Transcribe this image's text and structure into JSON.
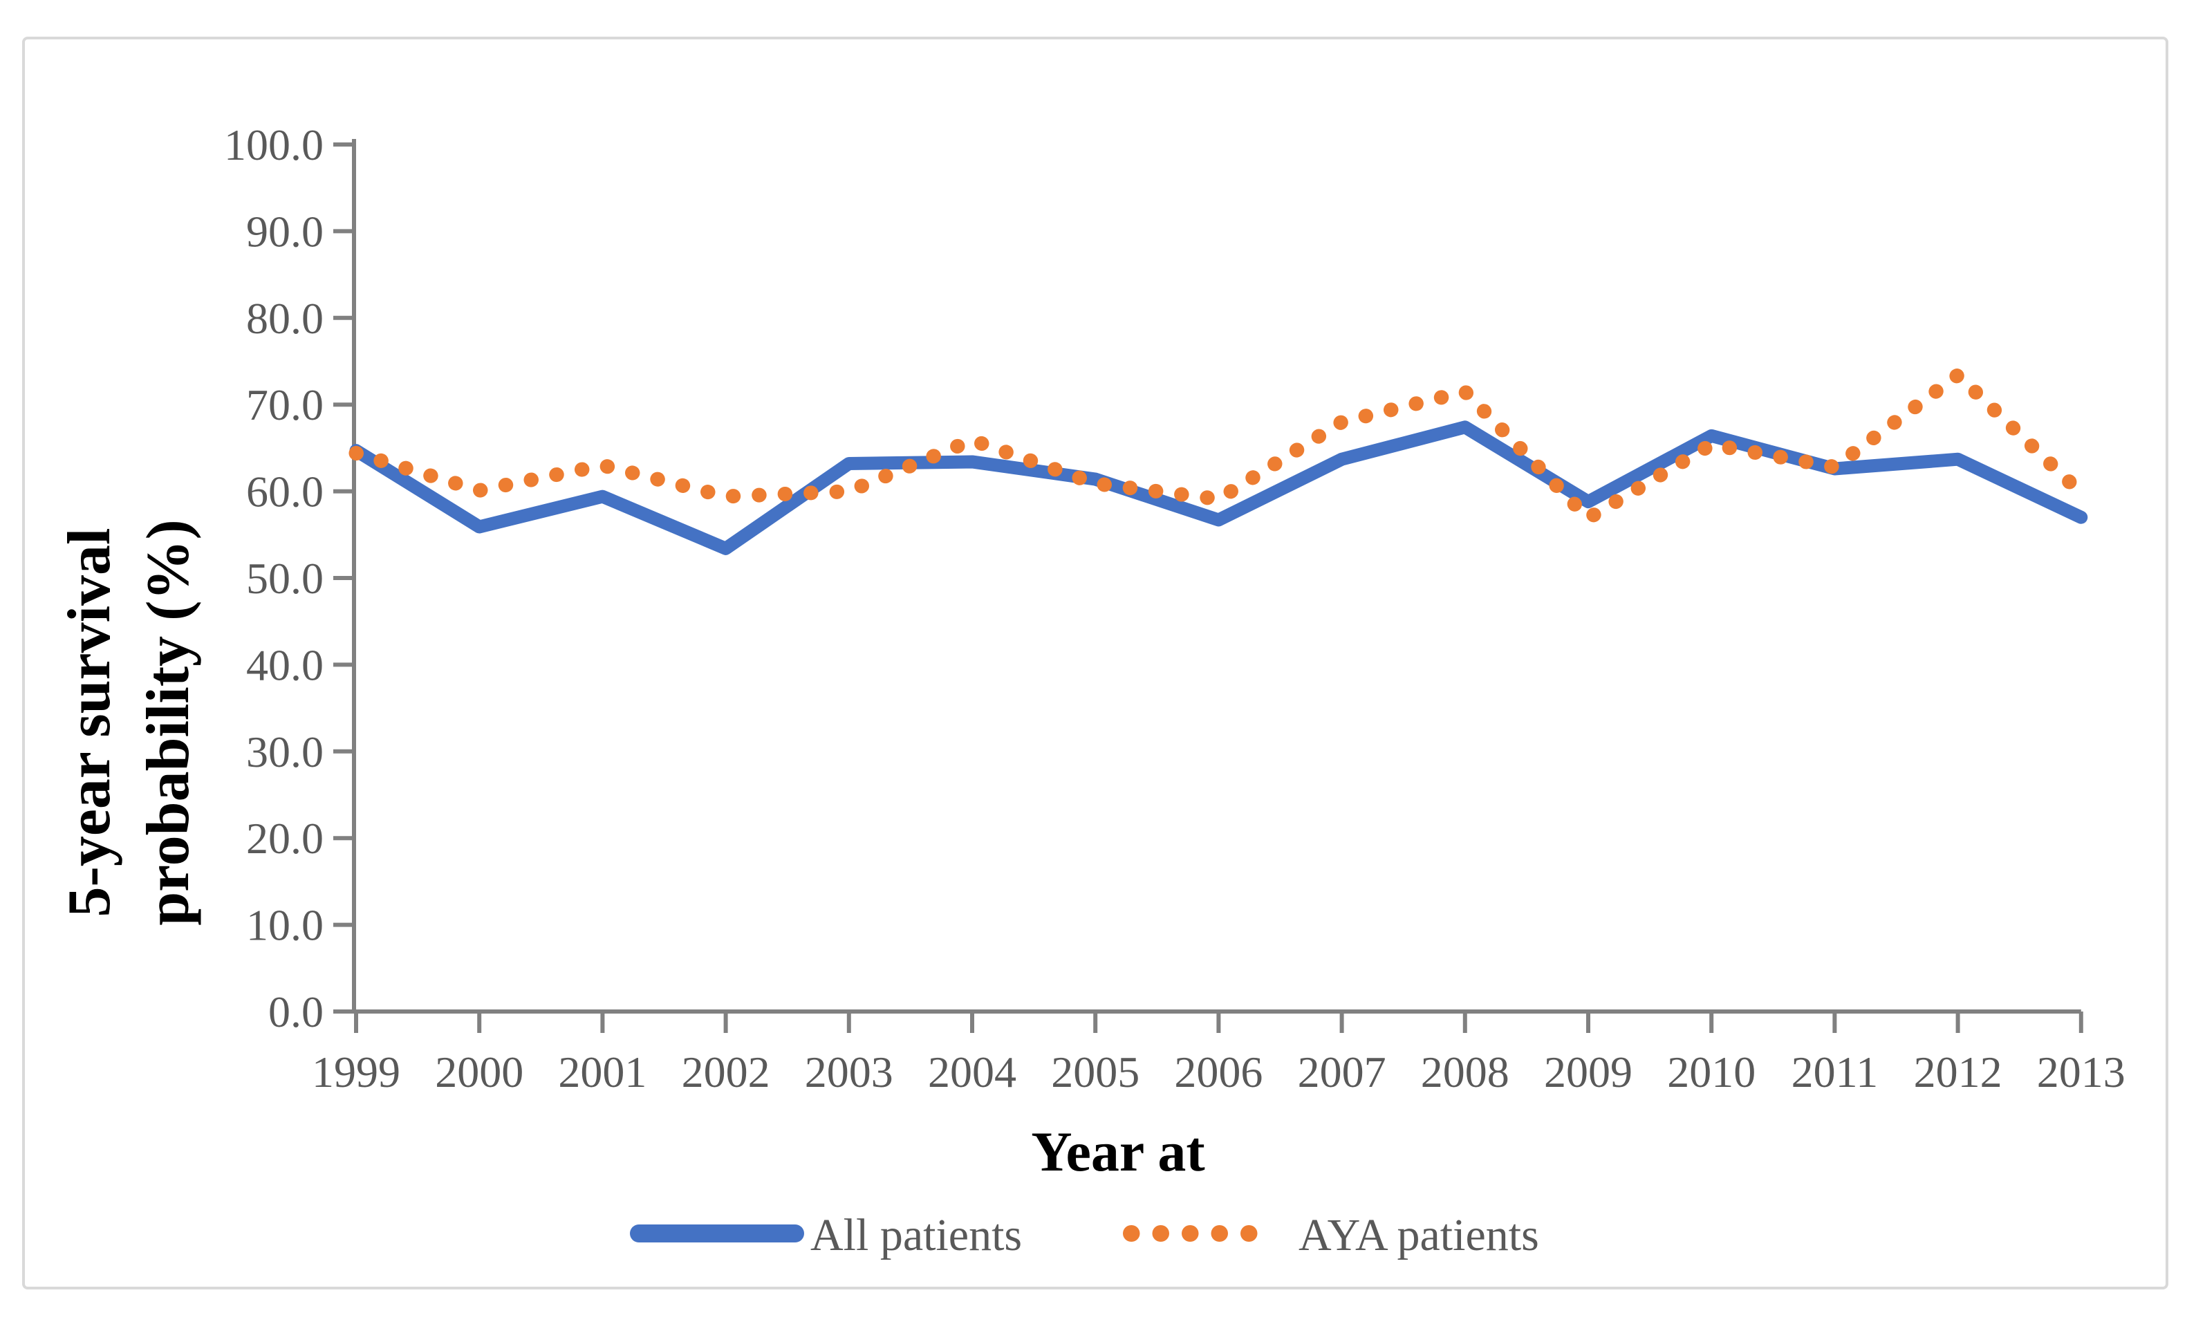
{
  "figure": {
    "border_color": "#D9D9D9",
    "background_color": "#FFFFFF"
  },
  "chart_data": {
    "type": "line",
    "title": "",
    "xlabel": "Year at",
    "ylabel": "5-year survival probability (%)",
    "ylabel_lines": [
      "5-year survival",
      "probability (%)"
    ],
    "categories": [
      "1999",
      "2000",
      "2001",
      "2002",
      "2003",
      "2004",
      "2005",
      "2006",
      "2007",
      "2008",
      "2009",
      "2010",
      "2011",
      "2012",
      "2013"
    ],
    "series": [
      {
        "name": "All patients",
        "style": "solid",
        "color": "#4472C4",
        "values": [
          64.7,
          55.9,
          59.4,
          53.4,
          63.2,
          63.4,
          61.4,
          56.7,
          63.7,
          67.4,
          58.8,
          66.4,
          62.6,
          63.7,
          57.0
        ]
      },
      {
        "name": "AYA patients",
        "style": "dotted",
        "color": "#ED7D31",
        "values": [
          64.4,
          60.1,
          63.0,
          59.4,
          60.0,
          65.9,
          60.9,
          59.1,
          68.0,
          71.5,
          56.9,
          65.4,
          62.8,
          73.4,
          59.8
        ]
      }
    ],
    "ylim": [
      0,
      100
    ],
    "y_tick_step": 10,
    "y_tick_labels": [
      "0.0",
      "10.0",
      "20.0",
      "30.0",
      "40.0",
      "50.0",
      "60.0",
      "70.0",
      "80.0",
      "90.0",
      "100.0"
    ],
    "grid": false,
    "legend_position": "bottom",
    "axis_color": "#808080",
    "tick_text_color": "#595959"
  }
}
